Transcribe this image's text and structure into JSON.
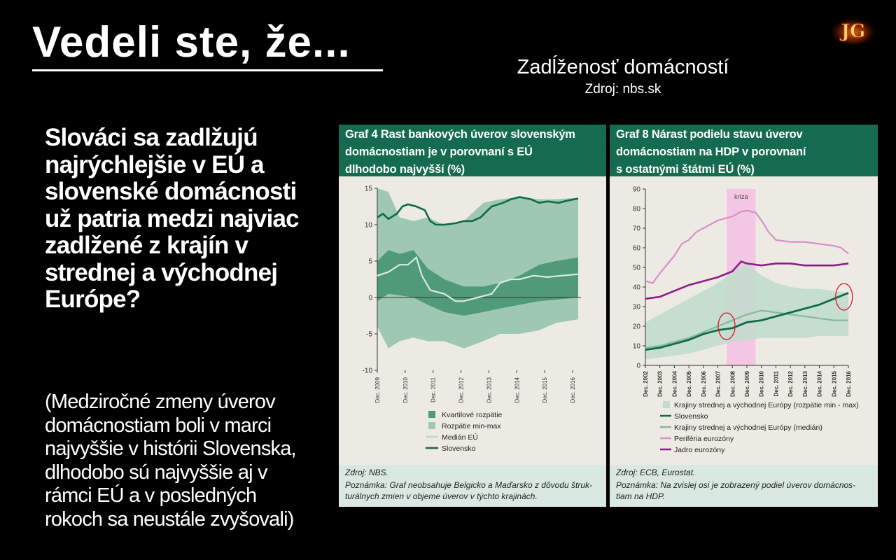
{
  "slide": {
    "headline": "Vedeli ste, že...",
    "logo_text": "JG",
    "subtitle": "Zadĺženosť domácností",
    "source_line": "Zdroj: nbs.sk",
    "main_text": "Slováci sa zadlžujú\nnajrýchlejšie v EÚ a\nslovenské domácnosti\nuž patria medzi najviac\nzadlžené z krajín v\nstrednej a východnej\nEurópe?",
    "note_text": "(Medziročné zmeny úverov\ndomácnostiam boli v marci\nnajvyššie v  histórii Slovenska,\ndlhodobo sú najvyššie aj v\nrámci EÚ a  v  posledných\nrokoch sa neustále zvyšovali)",
    "colors": {
      "header_green": "#156b4f",
      "panel_bg": "#eceae3",
      "footer_bg": "#d9e8e0"
    }
  },
  "chart_data": [
    {
      "type": "area",
      "title": "Graf 4 Rast bankových úverov slovenským\ndomácnostiam je v porovnaní s EÚ\ndlhodobo najvyšší (%)",
      "ylim": [
        -10,
        15
      ],
      "yticks": [
        "15",
        "10",
        "5",
        "0",
        "-5",
        "-10"
      ],
      "x_ticks": [
        "Dec. 2009",
        "Dec. 2010",
        "Dec. 2011",
        "Dec. 2012",
        "Dec. 2013",
        "Dec. 2014",
        "Dec. 2015",
        "Dec. 2016"
      ],
      "x_range": [
        2009.9,
        2017.2
      ],
      "legend": [
        "Kvartilové rozpätie",
        "Rozpätie min-max",
        "Medián EÚ",
        "Slovensko"
      ],
      "series": {
        "min_max_upper": [
          [
            2009.9,
            15
          ],
          [
            2010.3,
            14.5
          ],
          [
            2010.7,
            11
          ],
          [
            2011.2,
            10.5
          ],
          [
            2011.7,
            11
          ],
          [
            2012.3,
            10
          ],
          [
            2013.0,
            10.5
          ],
          [
            2013.7,
            13
          ],
          [
            2014.3,
            13.5
          ],
          [
            2015.0,
            13.8
          ],
          [
            2015.7,
            13.5
          ],
          [
            2016.3,
            13.5
          ],
          [
            2017.1,
            13.7
          ]
        ],
        "min_max_lower": [
          [
            2009.9,
            -4
          ],
          [
            2010.3,
            -7
          ],
          [
            2010.7,
            -6
          ],
          [
            2011.2,
            -5.5
          ],
          [
            2011.7,
            -6
          ],
          [
            2012.3,
            -6
          ],
          [
            2013.0,
            -7
          ],
          [
            2013.7,
            -6
          ],
          [
            2014.3,
            -5
          ],
          [
            2015.0,
            -5
          ],
          [
            2015.7,
            -4.5
          ],
          [
            2016.3,
            -3.5
          ],
          [
            2017.1,
            -3
          ]
        ],
        "quartile_upper": [
          [
            2009.9,
            5
          ],
          [
            2010.3,
            6.5
          ],
          [
            2010.7,
            6
          ],
          [
            2011.2,
            6.5
          ],
          [
            2011.7,
            4
          ],
          [
            2012.3,
            2.5
          ],
          [
            2013.0,
            1.5
          ],
          [
            2013.7,
            1.5
          ],
          [
            2014.3,
            2
          ],
          [
            2015.0,
            3
          ],
          [
            2015.7,
            4.5
          ],
          [
            2016.3,
            5
          ],
          [
            2017.1,
            5.5
          ]
        ],
        "quartile_lower": [
          [
            2009.9,
            -0.5
          ],
          [
            2010.3,
            0.5
          ],
          [
            2010.7,
            0.3
          ],
          [
            2011.2,
            0
          ],
          [
            2011.7,
            -1
          ],
          [
            2012.3,
            -2
          ],
          [
            2013.0,
            -2.5
          ],
          [
            2013.7,
            -2
          ],
          [
            2014.3,
            -1.5
          ],
          [
            2015.0,
            -1
          ],
          [
            2015.7,
            -0.5
          ],
          [
            2016.3,
            -0.3
          ],
          [
            2017.1,
            0
          ]
        ],
        "median_eu": [
          [
            2009.9,
            3
          ],
          [
            2010.3,
            3.5
          ],
          [
            2010.7,
            4.5
          ],
          [
            2011.0,
            4.5
          ],
          [
            2011.3,
            5.5
          ],
          [
            2011.5,
            3
          ],
          [
            2011.8,
            1
          ],
          [
            2012.3,
            0.5
          ],
          [
            2012.7,
            -0.5
          ],
          [
            2013.0,
            -0.5
          ],
          [
            2013.5,
            0
          ],
          [
            2014.0,
            0.5
          ],
          [
            2014.3,
            2
          ],
          [
            2014.7,
            2.5
          ],
          [
            2015.0,
            2.5
          ],
          [
            2015.5,
            3
          ],
          [
            2016.0,
            2.8
          ],
          [
            2016.5,
            3
          ],
          [
            2017.1,
            3.2
          ]
        ],
        "slovensko": [
          [
            2009.9,
            11
          ],
          [
            2010.1,
            11.5
          ],
          [
            2010.3,
            10.8
          ],
          [
            2010.6,
            11.5
          ],
          [
            2010.8,
            12.5
          ],
          [
            2011.0,
            12.8
          ],
          [
            2011.3,
            12.5
          ],
          [
            2011.6,
            12
          ],
          [
            2011.8,
            10.5
          ],
          [
            2012.0,
            10
          ],
          [
            2012.3,
            10
          ],
          [
            2012.7,
            10.2
          ],
          [
            2013.0,
            10.5
          ],
          [
            2013.3,
            10.5
          ],
          [
            2013.6,
            11
          ],
          [
            2014.0,
            12.5
          ],
          [
            2014.4,
            13
          ],
          [
            2014.7,
            13.5
          ],
          [
            2015.0,
            13.8
          ],
          [
            2015.4,
            13.5
          ],
          [
            2015.7,
            13
          ],
          [
            2016.0,
            13.2
          ],
          [
            2016.4,
            13
          ],
          [
            2016.7,
            13.3
          ],
          [
            2017.1,
            13.6
          ]
        ]
      },
      "source": "Zdroj: NBS.",
      "note": "Poznámka: Graf neobsahuje Belgicko a Maďarsko z dôvodu štruk-\nturálnych zmien v objeme úverov v týchto krajinách."
    },
    {
      "type": "area",
      "title": "Graf 8 Nárast podielu stavu úverov\ndomácnostiam na HDP v porovnaní\ns ostatnými štátmi EÚ (%)",
      "ylim": [
        0,
        90
      ],
      "yticks": [
        "90",
        "80",
        "70",
        "60",
        "50",
        "40",
        "30",
        "20",
        "10",
        "0"
      ],
      "x_ticks": [
        "Dec. 2002",
        "Dec. 2003",
        "Dec. 2004",
        "Dec. 2005",
        "Dec. 2006",
        "Dec. 2007",
        "Dec. 2008",
        "Dec. 2009",
        "Dec. 2010",
        "Dec. 2011",
        "Dec. 2012",
        "Dec. 2013",
        "Dec. 2014",
        "Dec. 2015",
        "Dec. 2016"
      ],
      "x_range": [
        2002,
        2016
      ],
      "annotation": "kríza",
      "crisis_range": [
        2007.6,
        2009.6
      ],
      "legend": [
        "Krajiny strednej a východnej Európy (rozpätie min - max)",
        "Slovensko",
        "Krajiny strednej a východnej Európy (medián)",
        "Periféria eurozóny",
        "Jadro eurozóny"
      ],
      "series": {
        "cee_range_upper": [
          [
            2002,
            22
          ],
          [
            2003,
            26
          ],
          [
            2004,
            30
          ],
          [
            2005,
            34
          ],
          [
            2006,
            38
          ],
          [
            2007,
            42
          ],
          [
            2008,
            48
          ],
          [
            2009,
            52
          ],
          [
            2010,
            46
          ],
          [
            2011,
            42
          ],
          [
            2012,
            40
          ],
          [
            2013,
            39
          ],
          [
            2014,
            39
          ],
          [
            2015,
            38
          ],
          [
            2016,
            37
          ]
        ],
        "cee_range_lower": [
          [
            2002,
            3
          ],
          [
            2003,
            4
          ],
          [
            2004,
            5
          ],
          [
            2005,
            6
          ],
          [
            2006,
            8
          ],
          [
            2007,
            10
          ],
          [
            2008,
            12
          ],
          [
            2009,
            13
          ],
          [
            2010,
            14
          ],
          [
            2011,
            14
          ],
          [
            2012,
            14
          ],
          [
            2013,
            14
          ],
          [
            2014,
            15
          ],
          [
            2015,
            15
          ],
          [
            2016,
            15
          ]
        ],
        "slovensko": [
          [
            2002,
            8
          ],
          [
            2003,
            9
          ],
          [
            2004,
            11
          ],
          [
            2005,
            13
          ],
          [
            2006,
            16
          ],
          [
            2007,
            18
          ],
          [
            2008,
            19
          ],
          [
            2009,
            22
          ],
          [
            2010,
            23
          ],
          [
            2011,
            25
          ],
          [
            2012,
            27
          ],
          [
            2013,
            29
          ],
          [
            2014,
            31
          ],
          [
            2015,
            34
          ],
          [
            2016,
            37
          ]
        ],
        "cee_median": [
          [
            2002,
            9
          ],
          [
            2003,
            10
          ],
          [
            2004,
            12
          ],
          [
            2005,
            14
          ],
          [
            2006,
            17
          ],
          [
            2007,
            20
          ],
          [
            2008,
            23
          ],
          [
            2009,
            26
          ],
          [
            2010,
            28
          ],
          [
            2011,
            27
          ],
          [
            2012,
            26
          ],
          [
            2013,
            25
          ],
          [
            2014,
            24
          ],
          [
            2015,
            23
          ],
          [
            2016,
            23
          ]
        ],
        "periferia": [
          [
            2002,
            43
          ],
          [
            2002.5,
            42
          ],
          [
            2003,
            47
          ],
          [
            2004,
            56
          ],
          [
            2004.5,
            62
          ],
          [
            2005,
            64
          ],
          [
            2005.5,
            68
          ],
          [
            2006,
            70
          ],
          [
            2007,
            74
          ],
          [
            2008,
            76
          ],
          [
            2008.6,
            78.5
          ],
          [
            2009,
            79
          ],
          [
            2009.6,
            78
          ],
          [
            2010,
            74
          ],
          [
            2010.5,
            68
          ],
          [
            2011,
            64
          ],
          [
            2012,
            63
          ],
          [
            2013,
            63
          ],
          [
            2014,
            62
          ],
          [
            2015,
            61
          ],
          [
            2015.5,
            60
          ],
          [
            2016,
            57
          ]
        ],
        "jadro": [
          [
            2002,
            34
          ],
          [
            2003,
            35
          ],
          [
            2004,
            38
          ],
          [
            2005,
            41
          ],
          [
            2006,
            43
          ],
          [
            2007,
            45
          ],
          [
            2008,
            48
          ],
          [
            2008.6,
            53
          ],
          [
            2009,
            52
          ],
          [
            2010,
            51
          ],
          [
            2011,
            52
          ],
          [
            2012,
            52
          ],
          [
            2013,
            51
          ],
          [
            2014,
            51
          ],
          [
            2015,
            51
          ],
          [
            2016,
            52
          ]
        ]
      },
      "highlights": [
        [
          2007.6,
          20
        ],
        [
          2015.7,
          35
        ]
      ],
      "source": "Zdroj: ECB, Eurostat.",
      "note": "Poznámka: Na zvislej osi je zobrazený podiel úverov domácnos-\ntiam na HDP."
    }
  ]
}
